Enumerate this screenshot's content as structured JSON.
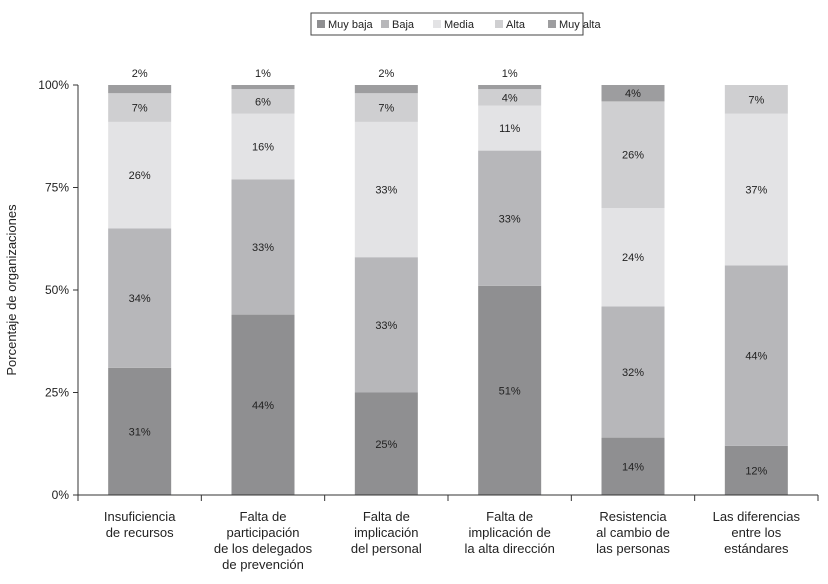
{
  "chart_data": {
    "type": "bar",
    "stacked": true,
    "ylabel": "Porcentaje de organizaciones",
    "xlabel": "",
    "ylim": [
      0,
      100
    ],
    "yticks": [
      "0%",
      "25%",
      "50%",
      "75%",
      "100%"
    ],
    "ytick_values": [
      0,
      25,
      50,
      75,
      100
    ],
    "grid": false,
    "legend_position": "top-center",
    "categories": [
      [
        "Insuficiencia",
        "de recursos"
      ],
      [
        "Falta de",
        "participación",
        "de los delegados",
        "de prevención"
      ],
      [
        "Falta de",
        "implicación",
        "del personal"
      ],
      [
        "Falta de",
        "implicación de",
        "la alta dirección"
      ],
      [
        "Resistencia",
        "al cambio de",
        "las personas"
      ],
      [
        "Las diferencias",
        "entre los",
        "estándares"
      ]
    ],
    "series": [
      {
        "name": "Muy baja",
        "color": "#8f8f91",
        "values": [
          31,
          44,
          25,
          51,
          14,
          12
        ],
        "labels": [
          "31%",
          "44%",
          "25%",
          "51%",
          "14%",
          "12%"
        ]
      },
      {
        "name": "Baja",
        "color": "#b7b7ba",
        "values": [
          34,
          33,
          33,
          33,
          32,
          44
        ],
        "labels": [
          "34%",
          "33%",
          "33%",
          "33%",
          "32%",
          "44%"
        ]
      },
      {
        "name": "Media",
        "color": "#e3e3e5",
        "values": [
          26,
          16,
          33,
          11,
          24,
          37
        ],
        "labels": [
          "26%",
          "16%",
          "33%",
          "11%",
          "24%",
          "37%"
        ]
      },
      {
        "name": "Alta",
        "color": "#cfcfd1",
        "values": [
          7,
          6,
          7,
          4,
          26,
          7
        ],
        "labels": [
          "7%",
          "6%",
          "7%",
          "4%",
          "26%",
          "7%"
        ]
      },
      {
        "name": "Muy alta",
        "color": "#9d9d9f",
        "values": [
          2,
          1,
          2,
          1,
          4,
          0
        ],
        "labels": [
          "2%",
          "1%",
          "2%",
          "1%",
          "4%",
          ""
        ]
      }
    ],
    "label_above_bar_series": "Muy alta"
  }
}
